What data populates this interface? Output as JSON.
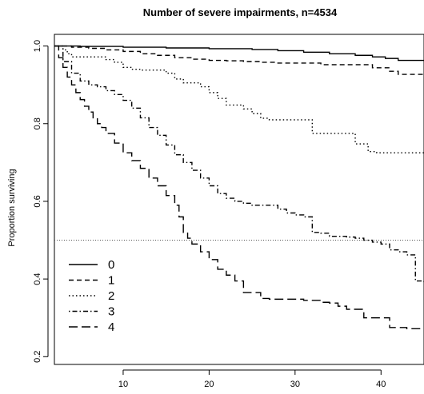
{
  "chart_data": {
    "type": "line",
    "step": true,
    "title": "Number of severe impairments, n=4534",
    "xlabel": "",
    "ylabel": "Proportion surviving",
    "xlim": [
      2,
      45
    ],
    "ylim": [
      0.18,
      1.03
    ],
    "x_ticks": [
      10,
      20,
      30,
      40
    ],
    "y_ticks": [
      0.2,
      0.4,
      0.6,
      0.8,
      1.0
    ],
    "x_tick_labels": [
      "10",
      "20",
      "30",
      "40"
    ],
    "y_tick_labels": [
      "0.2",
      "0.4",
      "0.6",
      "0.8",
      "1.0"
    ],
    "reference_line": 0.5,
    "legend_position": "bottom-left",
    "series": [
      {
        "name": "0",
        "dash": "solid",
        "x": [
          2,
          5,
          10,
          15,
          20,
          25,
          28,
          31,
          34,
          37,
          39,
          40.5,
          42,
          45
        ],
        "y": [
          1.0,
          0.999,
          0.997,
          0.995,
          0.993,
          0.991,
          0.988,
          0.984,
          0.98,
          0.976,
          0.972,
          0.968,
          0.963,
          0.963
        ]
      },
      {
        "name": "1",
        "dash": "dashed",
        "x": [
          2,
          4,
          6,
          8,
          10,
          12,
          14,
          16,
          18,
          20,
          22,
          24,
          26,
          28,
          33,
          39,
          41,
          42,
          45
        ],
        "y": [
          1.0,
          0.997,
          0.994,
          0.99,
          0.986,
          0.98,
          0.976,
          0.97,
          0.966,
          0.963,
          0.962,
          0.96,
          0.958,
          0.956,
          0.952,
          0.944,
          0.935,
          0.927,
          0.927
        ]
      },
      {
        "name": "2",
        "dash": "dotted",
        "x": [
          2,
          3,
          3.5,
          4,
          7,
          8,
          9,
          10,
          11,
          12,
          15,
          16,
          17,
          19,
          20,
          21,
          22,
          24,
          25,
          26,
          27,
          29,
          32,
          33,
          35,
          36,
          37,
          38.5,
          39.5,
          40.5,
          45
        ],
        "y": [
          1.0,
          0.99,
          0.98,
          0.972,
          0.972,
          0.965,
          0.958,
          0.945,
          0.94,
          0.938,
          0.93,
          0.915,
          0.905,
          0.895,
          0.88,
          0.865,
          0.848,
          0.838,
          0.826,
          0.814,
          0.81,
          0.81,
          0.775,
          0.775,
          0.775,
          0.775,
          0.748,
          0.728,
          0.725,
          0.725,
          0.725
        ]
      },
      {
        "name": "3",
        "dash": "dotdash",
        "x": [
          2,
          3,
          4,
          5,
          6,
          7,
          8,
          9,
          10,
          11,
          12,
          13,
          14,
          15,
          16,
          17,
          18,
          19,
          20,
          21,
          22,
          23,
          24,
          25,
          27,
          28,
          29,
          30,
          31,
          32,
          33,
          34,
          36,
          37,
          38,
          39,
          40,
          41,
          42,
          43,
          44,
          45
        ],
        "y": [
          1.0,
          0.96,
          0.93,
          0.91,
          0.9,
          0.895,
          0.885,
          0.875,
          0.86,
          0.84,
          0.815,
          0.79,
          0.77,
          0.745,
          0.72,
          0.7,
          0.68,
          0.66,
          0.64,
          0.62,
          0.608,
          0.6,
          0.595,
          0.59,
          0.59,
          0.58,
          0.57,
          0.565,
          0.56,
          0.52,
          0.518,
          0.51,
          0.508,
          0.505,
          0.5,
          0.495,
          0.49,
          0.475,
          0.47,
          0.462,
          0.395,
          0.39
        ]
      },
      {
        "name": "4",
        "dash": "longdash",
        "x": [
          2,
          2.5,
          3,
          3.5,
          4,
          4.5,
          5,
          5.5,
          6,
          6.5,
          7,
          7.5,
          8,
          9,
          10,
          11,
          12,
          13,
          14,
          15,
          16,
          16.5,
          17,
          17.5,
          18,
          19,
          20,
          21,
          22,
          23,
          24,
          26,
          27,
          28,
          31,
          33,
          34,
          35,
          36,
          38,
          39,
          40,
          41,
          42,
          43,
          45
        ],
        "y": [
          1.0,
          0.97,
          0.945,
          0.92,
          0.9,
          0.88,
          0.862,
          0.845,
          0.83,
          0.815,
          0.8,
          0.79,
          0.775,
          0.75,
          0.725,
          0.705,
          0.685,
          0.66,
          0.64,
          0.615,
          0.59,
          0.56,
          0.52,
          0.505,
          0.49,
          0.47,
          0.45,
          0.425,
          0.41,
          0.395,
          0.365,
          0.35,
          0.348,
          0.348,
          0.345,
          0.34,
          0.338,
          0.33,
          0.322,
          0.3,
          0.3,
          0.3,
          0.275,
          0.275,
          0.272,
          0.272
        ]
      }
    ]
  }
}
